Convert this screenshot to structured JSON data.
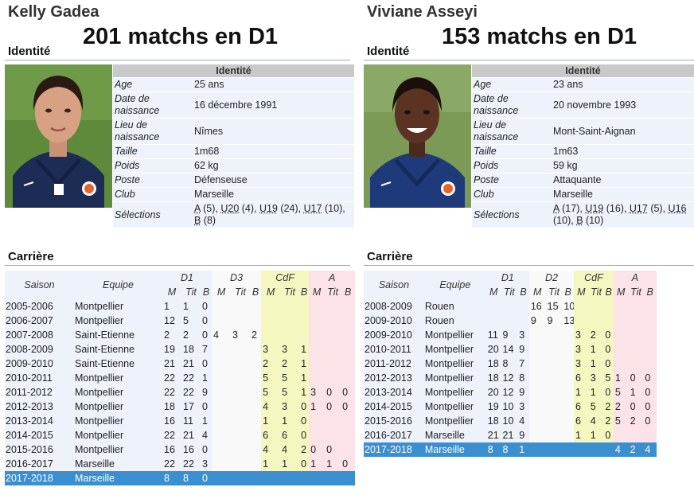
{
  "players": [
    {
      "name": "Kelly Gadea",
      "headline": "201 matchs en D1",
      "identity_section": "Identité",
      "career_section": "Carrière",
      "infobox": {
        "title": "Identité",
        "rows": [
          {
            "key": "Age",
            "value": "25 ans"
          },
          {
            "key": "Date de naissance",
            "value": "16 décembre 1991"
          },
          {
            "key": "Lieu de naissance",
            "value": "Nîmes"
          },
          {
            "key": "Taille",
            "value": "1m68"
          },
          {
            "key": "Poids",
            "value": "62 kg"
          },
          {
            "key": "Poste",
            "value": "Défenseuse"
          },
          {
            "key": "Club",
            "value": "Marseille"
          }
        ],
        "selections_key": "Sélections",
        "selections": [
          {
            "team": "A",
            "count": " (5), "
          },
          {
            "team": "U20",
            "count": " (4), "
          },
          {
            "team": "U19",
            "count": " (24), "
          },
          {
            "team": "U17",
            "count": " (10), "
          },
          {
            "team": "B",
            "count": " (8)"
          }
        ]
      },
      "career": {
        "headers": {
          "saison": "Saison",
          "equipe": "Equipe",
          "groups": [
            "D1",
            "D3",
            "CdF",
            "A"
          ],
          "sub": [
            "M",
            "Tit",
            "B"
          ]
        },
        "rows": [
          {
            "season": "2005-2006",
            "team": "Montpellier",
            "cells": [
              "1",
              "1",
              "0",
              "",
              "",
              "",
              "",
              "",
              "",
              "",
              "",
              ""
            ]
          },
          {
            "season": "2006-2007",
            "team": "Montpellier",
            "cells": [
              "12",
              "5",
              "0",
              "",
              "",
              "",
              "",
              "",
              "",
              "",
              "",
              ""
            ]
          },
          {
            "season": "2007-2008",
            "team": "Saint-Etienne",
            "cells": [
              "2",
              "2",
              "0",
              "4",
              "3",
              "2",
              "",
              "",
              "",
              "",
              "",
              ""
            ]
          },
          {
            "season": "2008-2009",
            "team": "Saint-Etienne",
            "cells": [
              "19",
              "18",
              "7",
              "",
              "",
              "",
              "3",
              "3",
              "1",
              "",
              "",
              ""
            ]
          },
          {
            "season": "2009-2010",
            "team": "Saint-Etienne",
            "cells": [
              "21",
              "21",
              "0",
              "",
              "",
              "",
              "2",
              "2",
              "1",
              "",
              "",
              ""
            ]
          },
          {
            "season": "2010-2011",
            "team": "Montpellier",
            "cells": [
              "22",
              "22",
              "1",
              "",
              "",
              "",
              "5",
              "5",
              "1",
              "",
              "",
              ""
            ]
          },
          {
            "season": "2011-2012",
            "team": "Montpellier",
            "cells": [
              "22",
              "22",
              "9",
              "",
              "",
              "",
              "5",
              "5",
              "1",
              "3",
              "0",
              "0"
            ]
          },
          {
            "season": "2012-2013",
            "team": "Montpellier",
            "cells": [
              "18",
              "17",
              "0",
              "",
              "",
              "",
              "4",
              "3",
              "0",
              "1",
              "0",
              "0"
            ]
          },
          {
            "season": "2013-2014",
            "team": "Montpellier",
            "cells": [
              "16",
              "11",
              "1",
              "",
              "",
              "",
              "1",
              "1",
              "0",
              "",
              "",
              ""
            ]
          },
          {
            "season": "2014-2015",
            "team": "Montpellier",
            "cells": [
              "22",
              "21",
              "4",
              "",
              "",
              "",
              "6",
              "6",
              "0",
              "",
              "",
              ""
            ]
          },
          {
            "season": "2015-2016",
            "team": "Montpellier",
            "cells": [
              "16",
              "16",
              "0",
              "",
              "",
              "",
              "4",
              "4",
              "2",
              "0",
              "0",
              ""
            ]
          },
          {
            "season": "2016-2017",
            "team": "Marseille",
            "cells": [
              "22",
              "22",
              "3",
              "",
              "",
              "",
              "1",
              "1",
              "0",
              "1",
              "1",
              "0"
            ]
          },
          {
            "season": "2017-2018",
            "team": "Marseille",
            "cells": [
              "8",
              "8",
              "0",
              "",
              "",
              "",
              "",
              "",
              "",
              "",
              "",
              ""
            ],
            "highlight": true
          }
        ]
      }
    },
    {
      "name": "Viviane Asseyi",
      "headline": "153 matchs en D1",
      "identity_section": "Identité",
      "career_section": "Carrière",
      "infobox": {
        "title": "Identité",
        "rows": [
          {
            "key": "Age",
            "value": "23 ans"
          },
          {
            "key": "Date de naissance",
            "value": "20 novembre 1993"
          },
          {
            "key": "Lieu de naissance",
            "value": "Mont-Saint-Aignan"
          },
          {
            "key": "Taille",
            "value": "1m63"
          },
          {
            "key": "Poids",
            "value": "59 kg"
          },
          {
            "key": "Poste",
            "value": "Attaquante"
          },
          {
            "key": "Club",
            "value": "Marseille"
          }
        ],
        "selections_key": "Sélections",
        "selections": [
          {
            "team": "A",
            "count": " (17), "
          },
          {
            "team": "U19",
            "count": " (16), "
          },
          {
            "team": "U17",
            "count": " (5), "
          },
          {
            "team": "U16",
            "count": " (10), "
          },
          {
            "team": "B",
            "count": " (10)"
          }
        ]
      },
      "career": {
        "headers": {
          "saison": "Saison",
          "equipe": "Equipe",
          "groups": [
            "D1",
            "D2",
            "CdF",
            "A"
          ],
          "sub": [
            "M",
            "Tit",
            "B"
          ]
        },
        "rows": [
          {
            "season": "2008-2009",
            "team": "Rouen",
            "cells": [
              "",
              "",
              "",
              "16",
              "15",
              "10",
              "",
              "",
              "",
              "",
              "",
              ""
            ]
          },
          {
            "season": "2009-2010",
            "team": "Rouen",
            "cells": [
              "",
              "",
              "",
              "9",
              "9",
              "13",
              "",
              "",
              "",
              "",
              "",
              ""
            ]
          },
          {
            "season": "2009-2010",
            "team": "Montpellier",
            "cells": [
              "11",
              "9",
              "3",
              "",
              "",
              "",
              "3",
              "2",
              "0",
              "",
              "",
              ""
            ]
          },
          {
            "season": "2010-2011",
            "team": "Montpellier",
            "cells": [
              "20",
              "14",
              "9",
              "",
              "",
              "",
              "3",
              "1",
              "0",
              "",
              "",
              ""
            ]
          },
          {
            "season": "2011-2012",
            "team": "Montpellier",
            "cells": [
              "18",
              "8",
              "7",
              "",
              "",
              "",
              "3",
              "1",
              "0",
              "",
              "",
              ""
            ]
          },
          {
            "season": "2012-2013",
            "team": "Montpellier",
            "cells": [
              "18",
              "12",
              "8",
              "",
              "",
              "",
              "6",
              "3",
              "5",
              "1",
              "0",
              "0"
            ]
          },
          {
            "season": "2013-2014",
            "team": "Montpellier",
            "cells": [
              "20",
              "12",
              "9",
              "",
              "",
              "",
              "1",
              "1",
              "0",
              "5",
              "1",
              "0"
            ]
          },
          {
            "season": "2014-2015",
            "team": "Montpellier",
            "cells": [
              "19",
              "10",
              "3",
              "",
              "",
              "",
              "6",
              "5",
              "2",
              "2",
              "0",
              "0"
            ]
          },
          {
            "season": "2015-2016",
            "team": "Montpellier",
            "cells": [
              "18",
              "10",
              "4",
              "",
              "",
              "",
              "6",
              "4",
              "2",
              "5",
              "2",
              "0"
            ]
          },
          {
            "season": "2016-2017",
            "team": "Marseille",
            "cells": [
              "21",
              "21",
              "9",
              "",
              "",
              "",
              "1",
              "1",
              "0",
              "",
              "",
              ""
            ]
          },
          {
            "season": "2017-2018",
            "team": "Marseille",
            "cells": [
              "8",
              "8",
              "1",
              "",
              "",
              "",
              "",
              "",
              "",
              "4",
              "2",
              "4"
            ],
            "highlight": true
          }
        ]
      }
    }
  ]
}
